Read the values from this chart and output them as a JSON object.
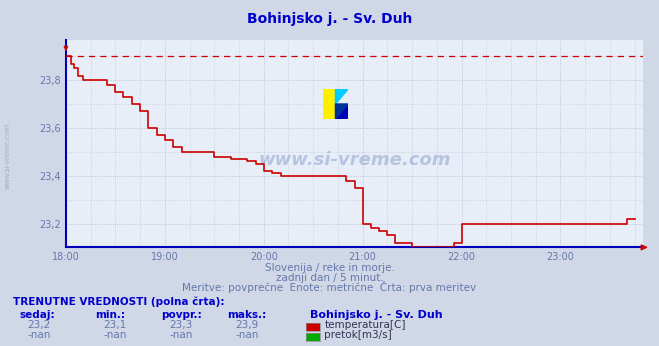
{
  "title": "Bohinjsko j. - Sv. Duh",
  "title_color": "#0000cc",
  "bg_color": "#d0d8e8",
  "plot_bg_color": "#e8eef8",
  "grid_color": "#b0b8cc",
  "line_color": "#cc0000",
  "axis_color": "#0000bb",
  "text_color": "#6677aa",
  "watermark_color": "#4466aa",
  "footer_title": "TRENUTNE VREDNOSTI (polna črta):",
  "footer_cols": [
    "sedaj:",
    "min.:",
    "povpr.:",
    "maks.:"
  ],
  "footer_vals_temp": [
    "23,2",
    "23,1",
    "23,3",
    "23,9"
  ],
  "footer_vals_flow": [
    "-nan",
    "-nan",
    "-nan",
    "-nan"
  ],
  "footer_station": "Bohinjsko j. - Sv. Duh",
  "legend_temp": "temperatura[C]",
  "legend_flow": "pretok[m3/s]",
  "legend_temp_color": "#cc0000",
  "legend_flow_color": "#00aa00",
  "subtitle1": "Slovenija / reke in morje.",
  "subtitle2": "zadnji dan / 5 minut.",
  "subtitle3": "Meritve: povprečne  Enote: metrične  Črta: prva meritev",
  "ylim": [
    23.1,
    23.97
  ],
  "yticks": [
    23.2,
    23.4,
    23.6,
    23.8
  ],
  "xlim_hours": [
    18.0,
    23.83
  ],
  "xticks_hours": [
    18.0,
    19.0,
    20.0,
    21.0,
    22.0,
    23.0
  ],
  "xtick_labels": [
    "18:00",
    "19:00",
    "20:00",
    "21:00",
    "22:00",
    "23:00"
  ],
  "dashed_y": 23.9,
  "temp_data": [
    [
      18.0,
      23.9
    ],
    [
      18.05,
      23.87
    ],
    [
      18.08,
      23.85
    ],
    [
      18.12,
      23.82
    ],
    [
      18.17,
      23.8
    ],
    [
      18.25,
      23.8
    ],
    [
      18.33,
      23.8
    ],
    [
      18.42,
      23.78
    ],
    [
      18.5,
      23.75
    ],
    [
      18.58,
      23.73
    ],
    [
      18.67,
      23.7
    ],
    [
      18.75,
      23.67
    ],
    [
      18.83,
      23.6
    ],
    [
      18.92,
      23.57
    ],
    [
      19.0,
      23.55
    ],
    [
      19.08,
      23.52
    ],
    [
      19.17,
      23.5
    ],
    [
      19.25,
      23.5
    ],
    [
      19.33,
      23.5
    ],
    [
      19.42,
      23.5
    ],
    [
      19.5,
      23.48
    ],
    [
      19.58,
      23.48
    ],
    [
      19.67,
      23.47
    ],
    [
      19.75,
      23.47
    ],
    [
      19.83,
      23.46
    ],
    [
      19.92,
      23.45
    ],
    [
      20.0,
      23.42
    ],
    [
      20.08,
      23.41
    ],
    [
      20.17,
      23.4
    ],
    [
      20.25,
      23.4
    ],
    [
      20.33,
      23.4
    ],
    [
      20.42,
      23.4
    ],
    [
      20.5,
      23.4
    ],
    [
      20.58,
      23.4
    ],
    [
      20.67,
      23.4
    ],
    [
      20.75,
      23.4
    ],
    [
      20.83,
      23.38
    ],
    [
      20.92,
      23.35
    ],
    [
      21.0,
      23.2
    ],
    [
      21.08,
      23.18
    ],
    [
      21.17,
      23.17
    ],
    [
      21.25,
      23.15
    ],
    [
      21.33,
      23.12
    ],
    [
      21.42,
      23.12
    ],
    [
      21.5,
      23.1
    ],
    [
      21.58,
      23.1
    ],
    [
      21.67,
      23.1
    ],
    [
      21.75,
      23.1
    ],
    [
      21.83,
      23.1
    ],
    [
      21.92,
      23.12
    ],
    [
      22.0,
      23.2
    ],
    [
      22.08,
      23.2
    ],
    [
      22.17,
      23.2
    ],
    [
      22.25,
      23.2
    ],
    [
      22.33,
      23.2
    ],
    [
      22.42,
      23.2
    ],
    [
      22.5,
      23.2
    ],
    [
      22.58,
      23.2
    ],
    [
      22.67,
      23.2
    ],
    [
      22.75,
      23.2
    ],
    [
      22.83,
      23.2
    ],
    [
      22.92,
      23.2
    ],
    [
      23.0,
      23.2
    ],
    [
      23.08,
      23.2
    ],
    [
      23.17,
      23.2
    ],
    [
      23.25,
      23.2
    ],
    [
      23.33,
      23.2
    ],
    [
      23.42,
      23.2
    ],
    [
      23.5,
      23.2
    ],
    [
      23.58,
      23.2
    ],
    [
      23.67,
      23.22
    ],
    [
      23.75,
      23.22
    ]
  ]
}
